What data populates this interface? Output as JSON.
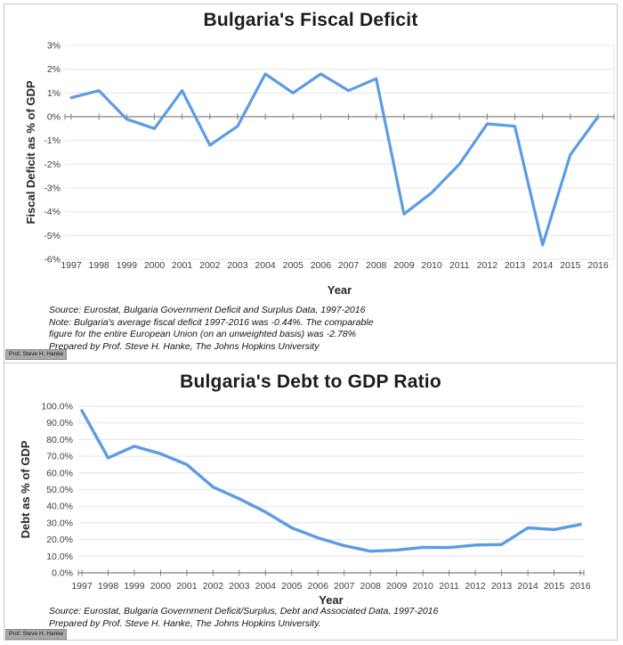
{
  "colors": {
    "grid": "#e4e4e4",
    "axis": "#808080",
    "line_blue": "#5b9ce4",
    "title_text": "#1c1c1c",
    "tick_text": "#3f3f3f"
  },
  "chart_data": [
    {
      "type": "line",
      "title": "Bulgaria's Fiscal Deficit",
      "xlabel": "Year",
      "ylabel": "Fiscal Deficit as % of GDP",
      "x": [
        "1997",
        "1998",
        "1999",
        "2000",
        "2001",
        "2002",
        "2003",
        "2004",
        "2005",
        "2006",
        "2007",
        "2008",
        "2009",
        "2010",
        "2011",
        "2012",
        "2013",
        "2014",
        "2015",
        "2016"
      ],
      "values": [
        0.8,
        1.1,
        -0.1,
        -0.5,
        1.1,
        -1.2,
        -0.4,
        1.8,
        1.0,
        1.8,
        1.1,
        1.6,
        -4.1,
        -3.2,
        -2.0,
        -0.3,
        -0.4,
        -5.4,
        -1.6,
        0.0
      ],
      "ylim": [
        -6,
        3
      ],
      "yticks": [
        {
          "value": 3,
          "label": "3%"
        },
        {
          "value": 2,
          "label": "2%"
        },
        {
          "value": 1,
          "label": "1%"
        },
        {
          "value": 0,
          "label": "0%"
        },
        {
          "value": -1,
          "label": "-1%"
        },
        {
          "value": -2,
          "label": "-2%"
        },
        {
          "value": -3,
          "label": "-3%"
        },
        {
          "value": -4,
          "label": "-4%"
        },
        {
          "value": -5,
          "label": "-5%"
        },
        {
          "value": -6,
          "label": "-6%"
        }
      ],
      "grid": true,
      "legend": "none",
      "line_color": "#5b9ce4",
      "source_lines": [
        "Source: Eurostat, Bulgaria Government Deficit and Surplus Data, 1997-2016",
        "Note: Bulgaria's average fiscal deficit 1997-2016 was -0.44%. The comparable",
        "figure for the  entire European Union (on an unweighted basis) was -2.78%",
        "Prepared by Prof. Steve H. Hanke, The Johns Hopkins University"
      ],
      "watermark": "Prof. Steve H. Hanke"
    },
    {
      "type": "line",
      "title": "Bulgaria's Debt to GDP Ratio",
      "xlabel": "Year",
      "ylabel": "Debt as % of GDP",
      "x": [
        "1997",
        "1998",
        "1999",
        "2000",
        "2001",
        "2002",
        "2003",
        "2004",
        "2005",
        "2006",
        "2007",
        "2008",
        "2009",
        "2010",
        "2011",
        "2012",
        "2013",
        "2014",
        "2015",
        "2016"
      ],
      "values": [
        97.4,
        69.0,
        76.0,
        71.5,
        65.0,
        51.5,
        44.5,
        36.5,
        27.0,
        21.0,
        16.3,
        13.0,
        13.7,
        15.3,
        15.2,
        16.7,
        17.0,
        27.0,
        26.0,
        29.0
      ],
      "ylim": [
        0,
        100
      ],
      "yticks": [
        {
          "value": 100,
          "label": "100.0%"
        },
        {
          "value": 90,
          "label": "90.0%"
        },
        {
          "value": 80,
          "label": "80.0%"
        },
        {
          "value": 70,
          "label": "70.0%"
        },
        {
          "value": 60,
          "label": "60.0%"
        },
        {
          "value": 50,
          "label": "50.0%"
        },
        {
          "value": 40,
          "label": "40.0%"
        },
        {
          "value": 30,
          "label": "30.0%"
        },
        {
          "value": 20,
          "label": "20.0%"
        },
        {
          "value": 10,
          "label": "10.0%"
        },
        {
          "value": 0,
          "label": "0.0%"
        }
      ],
      "grid": true,
      "legend": "none",
      "line_color": "#5b9ce4",
      "source_lines": [
        "Source: Eurostat, Bulgaria Government Deficit/Surplus, Debt and Associated Data, 1997-2016",
        "Prepared by Prof. Steve H. Hanke, The Johns Hopkins University."
      ],
      "watermark": "Prof. Steve H. Hanke"
    }
  ]
}
